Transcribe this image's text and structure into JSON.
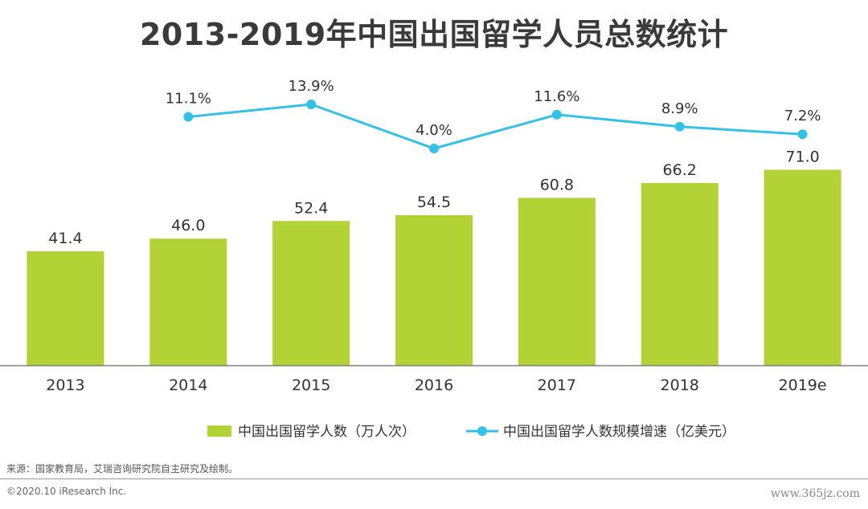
{
  "page": {
    "title": "2013-2019年中国出国留学人员总数统计",
    "source": "来源：国家教育局，艾瑞咨询研究院自主研究及绘制。",
    "copyright": "©2020.10 iResearch Inc.",
    "watermark": "www.365jz.com"
  },
  "chart_data": {
    "type": "bar",
    "title": "2013-2019年中国出国留学人员总数统计",
    "categories": [
      "2013",
      "2014",
      "2015",
      "2016",
      "2017",
      "2018",
      "2019e"
    ],
    "series": [
      {
        "name": "中国出国留学人数（万人次）",
        "type": "bar",
        "values": [
          41.4,
          46.0,
          52.4,
          54.5,
          60.8,
          66.2,
          71.0
        ],
        "labels": [
          "41.4",
          "46.0",
          "52.4",
          "54.5",
          "60.8",
          "66.2",
          "71.0"
        ]
      },
      {
        "name": "中国出国留学人数规模增速（亿美元）",
        "type": "line",
        "values": [
          null,
          11.1,
          13.9,
          4.0,
          11.6,
          8.9,
          7.2
        ],
        "labels": [
          null,
          "11.1%",
          "13.9%",
          "4.0%",
          "11.6%",
          "8.9%",
          "7.2%"
        ]
      }
    ],
    "colors": {
      "bar": "#b2d235",
      "line": "#33c2e6",
      "axis": "#7f7f7f"
    },
    "legend_position": "bottom",
    "grid": false
  }
}
